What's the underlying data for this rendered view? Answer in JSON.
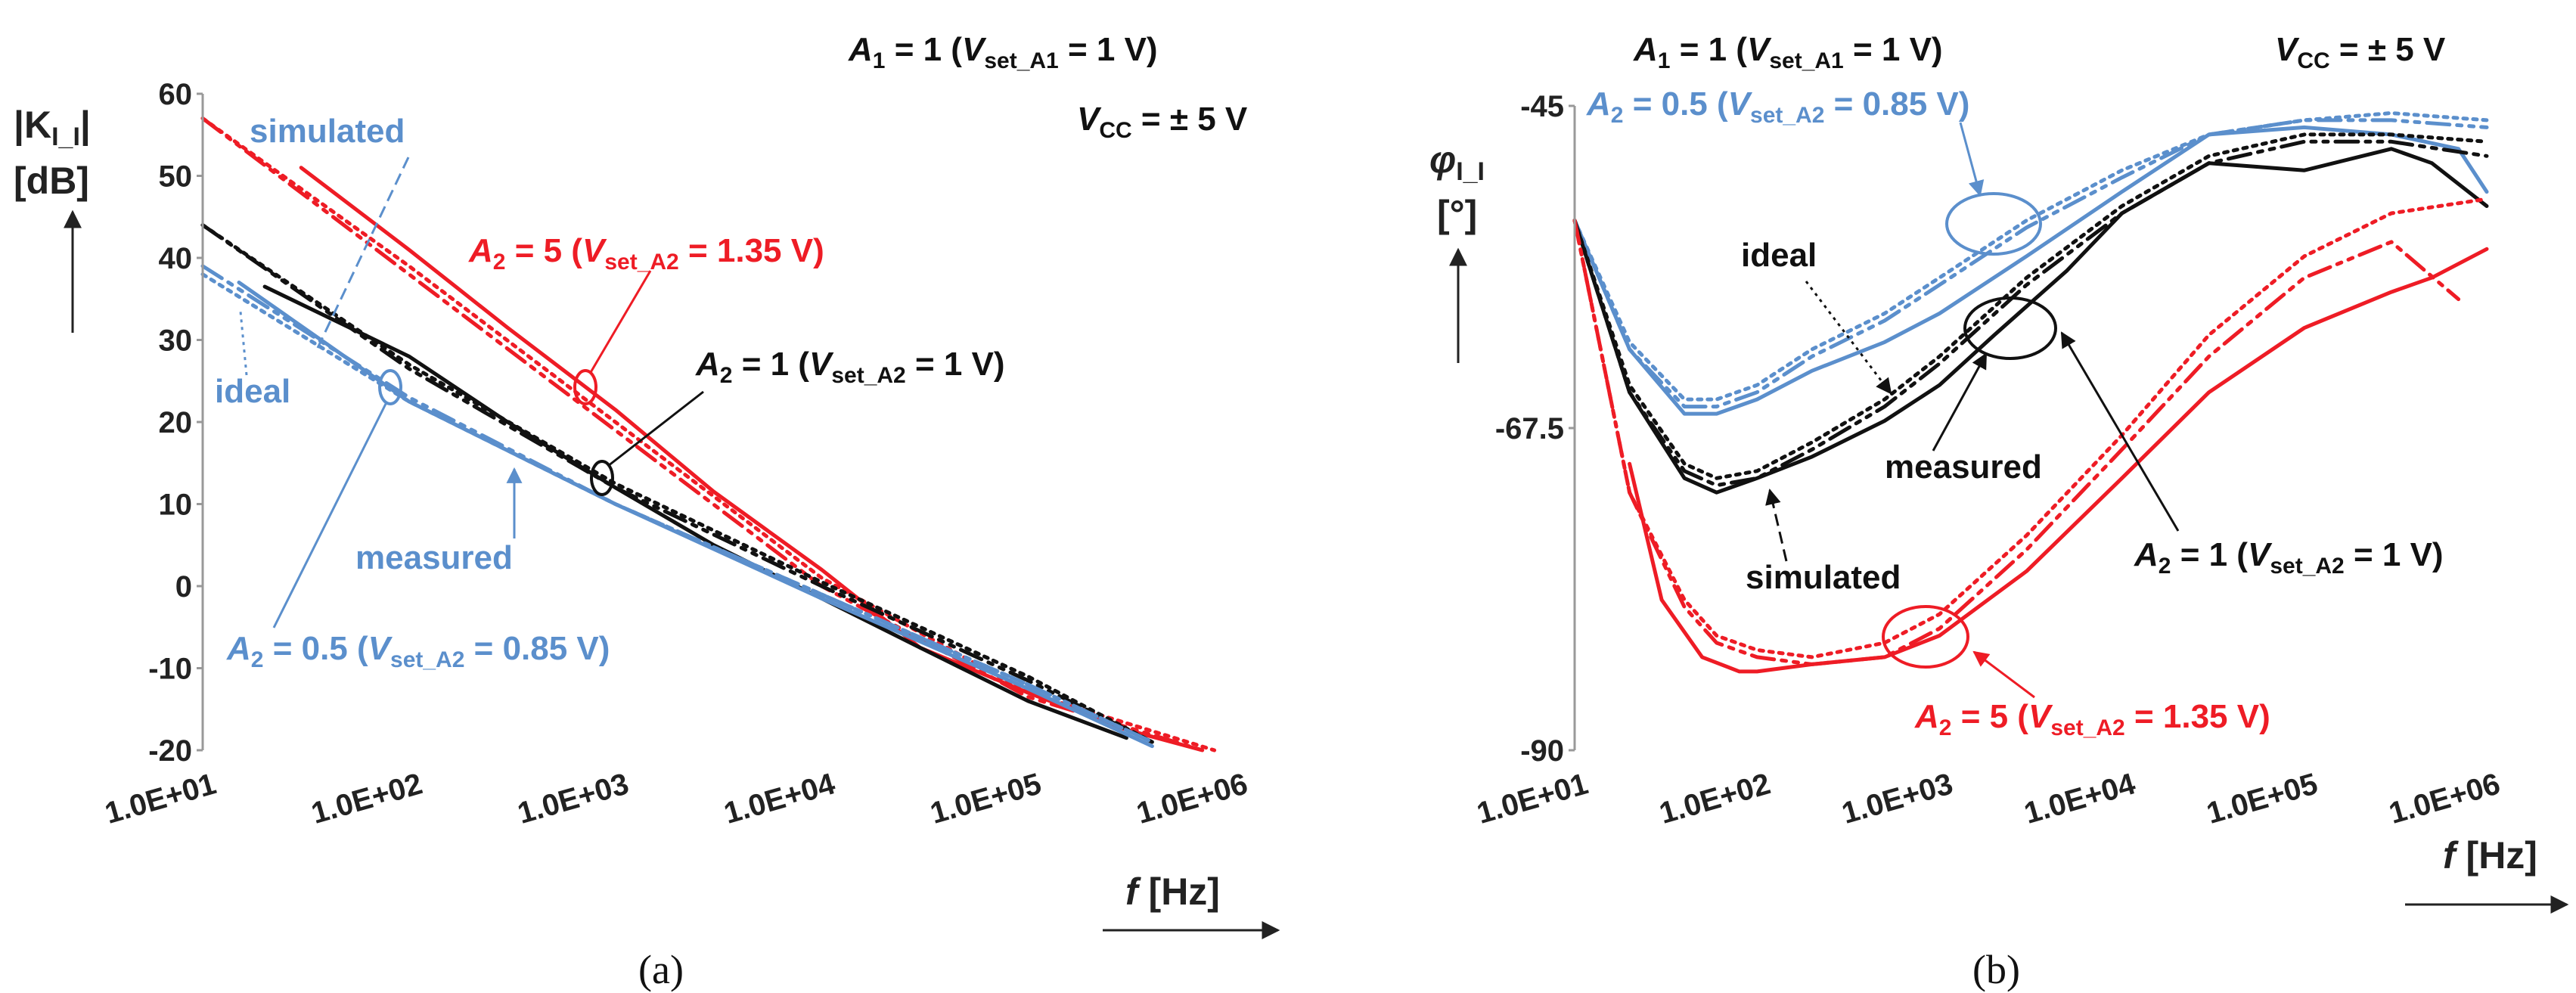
{
  "colors": {
    "red": "#ee1c25",
    "black": "#111111",
    "blue": "#5b8fcc"
  },
  "chart_data": [
    {
      "type": "line",
      "panel_label": "(a)",
      "title": "",
      "xlabel": "f [Hz]",
      "ylabel": "|K_I_I| [dB]",
      "ylabel_main": "|K",
      "ylabel_sub": "I_I",
      "ylabel_close": "|",
      "ylabel_unit": "[dB]",
      "xlabel_var": "f",
      "xlabel_unit": " [Hz]",
      "xscale": "log",
      "xlim": [
        10,
        1000000
      ],
      "ylim": [
        -20,
        60
      ],
      "x_ticks": [
        "1.0E+01",
        "1.0E+02",
        "1.0E+03",
        "1.0E+04",
        "1.0E+05",
        "1.0E+06"
      ],
      "y_ticks": [
        "-20",
        "-10",
        "0",
        "10",
        "20",
        "30",
        "40",
        "50",
        "60"
      ],
      "header_a1": "A1 = 1 (Vset_A1 = 1 V)",
      "header_vcc": "VCC = ± 5 V",
      "annotations": {
        "simulated": "simulated",
        "ideal": "ideal",
        "measured": "measured",
        "gain5": "A2 = 5 (Vset_A2 = 1.35 V)",
        "gain1": "A2 = 1 (Vset_A2 = 1 V)",
        "gain05": "A2 = 0.5 (Vset_A2 = 0.85 V)"
      },
      "series": [
        {
          "name": "A2 = 5 measured",
          "color": "red",
          "style": "measured",
          "x": [
            30,
            100,
            300,
            1000,
            3000,
            10000,
            30000,
            100000,
            300000,
            700000
          ],
          "y": [
            51,
            41,
            31.5,
            21.5,
            11.5,
            2,
            -7.5,
            -13,
            -17.5,
            -20
          ]
        },
        {
          "name": "A2 = 5 simulated",
          "color": "red",
          "style": "simulated",
          "x": [
            10,
            100,
            1000,
            10000,
            100000,
            700000
          ],
          "y": [
            57,
            38,
            19,
            0,
            -13.5,
            -20
          ]
        },
        {
          "name": "A2 = 5 ideal",
          "color": "red",
          "style": "ideal",
          "x": [
            10,
            100,
            1000,
            10000,
            100000,
            800000
          ],
          "y": [
            57,
            39,
            20,
            1,
            -13,
            -20
          ]
        },
        {
          "name": "A2 = 1 measured",
          "color": "black",
          "style": "measured",
          "x": [
            20,
            100,
            300,
            1000,
            3000,
            10000,
            30000,
            100000,
            300000
          ],
          "y": [
            36.5,
            28,
            20,
            12,
            5,
            -1.5,
            -7.5,
            -14,
            -18.5
          ]
        },
        {
          "name": "A2 = 1 simulated",
          "color": "black",
          "style": "simulated",
          "x": [
            10,
            100,
            1000,
            10000,
            100000,
            400000
          ],
          "y": [
            44,
            26.5,
            12,
            0,
            -11.5,
            -19
          ]
        },
        {
          "name": "A2 = 1 ideal",
          "color": "black",
          "style": "ideal",
          "x": [
            10,
            100,
            1000,
            10000,
            100000,
            400000
          ],
          "y": [
            44,
            27,
            12.5,
            0.5,
            -11,
            -19
          ]
        },
        {
          "name": "A2 = 0.5 measured",
          "color": "blue",
          "style": "measured",
          "x": [
            15,
            100,
            1000,
            10000,
            100000,
            400000
          ],
          "y": [
            37,
            22.5,
            10,
            -1.5,
            -12.5,
            -19.5
          ]
        },
        {
          "name": "A2 = 0.5 simulated",
          "color": "blue",
          "style": "simulated",
          "x": [
            10,
            100,
            1000,
            10000,
            100000,
            400000
          ],
          "y": [
            39,
            23,
            10,
            -1,
            -12,
            -19
          ]
        },
        {
          "name": "A2 = 0.5 ideal",
          "color": "blue",
          "style": "ideal",
          "x": [
            10,
            100,
            1000,
            10000,
            100000,
            400000
          ],
          "y": [
            38,
            22.5,
            10,
            -1,
            -12,
            -19
          ]
        }
      ]
    },
    {
      "type": "line",
      "panel_label": "(b)",
      "title": "",
      "xlabel": "f [Hz]",
      "ylabel": "φI_I [°]",
      "ylabel_main": "φ",
      "ylabel_sub": "I_I",
      "ylabel_unit": "[°]",
      "xlabel_var": "f",
      "xlabel_unit": " [Hz]",
      "xscale": "log",
      "xlim": [
        10,
        1000000
      ],
      "ylim": [
        -90,
        -45
      ],
      "x_ticks": [
        "1.0E+01",
        "1.0E+02",
        "1.0E+03",
        "1.0E+04",
        "1.0E+05",
        "1.0E+06"
      ],
      "y_ticks": [
        "-90",
        "-67.5",
        "-45"
      ],
      "header_a1": "A1 = 1 (Vset_A1 = 1 V)",
      "header_vcc": "VCC = ± 5 V",
      "annotations": {
        "gain05": "A2 = 0.5 (Vset_A2 = 0.85 V)",
        "ideal": "ideal",
        "measured": "measured",
        "simulated": "simulated",
        "gain1": "A2 = 1 (Vset_A2 = 1 V)",
        "gain5": "A2 = 5 (Vset_A2 = 1.35 V)"
      },
      "series": [
        {
          "name": "A2 = 0.5 measured",
          "color": "blue",
          "style": "measured",
          "x": [
            10,
            20,
            40,
            60,
            100,
            200,
            500,
            1000,
            3000,
            10000,
            30000,
            100000,
            300000,
            700000,
            1000000
          ],
          "y": [
            -53,
            -62,
            -66.5,
            -66.5,
            -65.5,
            -63.5,
            -61.5,
            -59.5,
            -55.5,
            -51,
            -47,
            -46.5,
            -47,
            -48,
            -51
          ]
        },
        {
          "name": "A2 = 0.5 simulated",
          "color": "blue",
          "style": "simulated",
          "x": [
            10,
            20,
            40,
            60,
            100,
            200,
            500,
            1000,
            3000,
            10000,
            30000,
            100000,
            300000,
            1000000
          ],
          "y": [
            -53,
            -62,
            -66,
            -66,
            -65,
            -62.5,
            -60,
            -57.5,
            -53.5,
            -50,
            -47,
            -46,
            -46,
            -46.5
          ]
        },
        {
          "name": "A2 = 0.5 ideal",
          "color": "blue",
          "style": "ideal",
          "x": [
            10,
            20,
            40,
            60,
            100,
            200,
            500,
            1000,
            3000,
            10000,
            30000,
            100000,
            300000,
            1000000
          ],
          "y": [
            -53,
            -61.5,
            -65.5,
            -65.5,
            -64.5,
            -62,
            -59.5,
            -57,
            -53,
            -49.5,
            -47,
            -46,
            -45.5,
            -46
          ]
        },
        {
          "name": "A2 = 1 measured",
          "color": "black",
          "style": "measured",
          "x": [
            10,
            20,
            40,
            60,
            100,
            200,
            500,
            1000,
            2000,
            5000,
            10000,
            30000,
            100000,
            300000,
            500000,
            1000000
          ],
          "y": [
            -53,
            -65,
            -71,
            -72,
            -71,
            -69.5,
            -67,
            -64.5,
            -61,
            -56.5,
            -52.5,
            -49,
            -49.5,
            -48,
            -49,
            -52
          ]
        },
        {
          "name": "A2 = 1 simulated",
          "color": "black",
          "style": "simulated",
          "x": [
            10,
            20,
            40,
            60,
            100,
            200,
            500,
            1000,
            3000,
            10000,
            30000,
            100000,
            300000,
            1000000
          ],
          "y": [
            -53,
            -65,
            -70.5,
            -71.5,
            -71,
            -69,
            -66,
            -63,
            -57.5,
            -52.5,
            -49,
            -47.5,
            -47.5,
            -48.5
          ]
        },
        {
          "name": "A2 = 1 ideal",
          "color": "black",
          "style": "ideal",
          "x": [
            10,
            20,
            40,
            60,
            100,
            200,
            500,
            1000,
            3000,
            10000,
            30000,
            100000,
            300000,
            1000000
          ],
          "y": [
            -53,
            -64.5,
            -70,
            -71,
            -70.5,
            -68.5,
            -65.5,
            -62.5,
            -57,
            -52,
            -48.5,
            -47,
            -47,
            -47.5
          ]
        },
        {
          "name": "A2 = 5 measured",
          "color": "red",
          "style": "measured",
          "x": [
            20,
            30,
            50,
            80,
            100,
            200,
            500,
            1000,
            3000,
            10000,
            30000,
            100000,
            300000,
            500000,
            1000000
          ],
          "y": [
            -70,
            -79.5,
            -83.5,
            -84.5,
            -84.5,
            -84,
            -83.5,
            -82,
            -77.5,
            -71,
            -65,
            -60.5,
            -58,
            -57,
            -55
          ]
        },
        {
          "name": "A2 = 5 simulated",
          "color": "red",
          "style": "simulated",
          "x": [
            10,
            20,
            40,
            60,
            100,
            200,
            500,
            1000,
            3000,
            10000,
            30000,
            100000,
            300000,
            700000
          ],
          "y": [
            -53,
            -72,
            -80,
            -82.5,
            -83.5,
            -84,
            -83.5,
            -81.5,
            -76,
            -69,
            -62.5,
            -57,
            -54.5,
            -58.5
          ]
        },
        {
          "name": "A2 = 5 ideal",
          "color": "red",
          "style": "ideal",
          "x": [
            10,
            20,
            40,
            60,
            100,
            200,
            500,
            1000,
            3000,
            10000,
            30000,
            100000,
            300000,
            1000000
          ],
          "y": [
            -53,
            -72,
            -79.5,
            -82,
            -83,
            -83.5,
            -82.5,
            -80.5,
            -75,
            -68,
            -61,
            -55.5,
            -52.5,
            -51.5
          ]
        }
      ]
    }
  ]
}
